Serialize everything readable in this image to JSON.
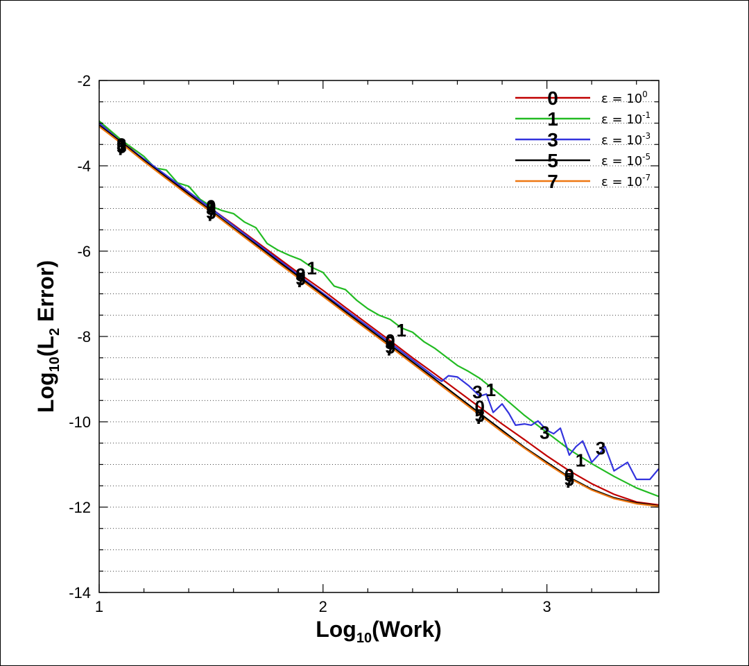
{
  "chart_data": {
    "type": "line",
    "title": "",
    "xlabel": "Log10(Work)",
    "xlabel_parts": {
      "base": "Log",
      "sub": "10",
      "rest": "(Work)"
    },
    "ylabel": "Log10(L2 Error)",
    "ylabel_parts": {
      "base": "Log",
      "sub": "10",
      "mid": "(L",
      "sub2": "2",
      "rest": " Error)"
    },
    "xlim": [
      1,
      3.5
    ],
    "ylim": [
      -14,
      -2
    ],
    "x_ticks": [
      1,
      2,
      3
    ],
    "x_tick_labels": [
      "1",
      "2",
      "3"
    ],
    "y_ticks": [
      -14,
      -12,
      -10,
      -8,
      -6,
      -4,
      -2
    ],
    "y_tick_labels": [
      "-14",
      "-12",
      "-10",
      "-8",
      "-6",
      "-4",
      "-2"
    ],
    "grid": "horizontal dotted",
    "legend_position": "top-right",
    "series": [
      {
        "symbol": "0",
        "legend_label": "ε = 10",
        "legend_exp": "0",
        "color": "#c00000",
        "x": [
          1.0,
          1.1,
          1.2,
          1.3,
          1.4,
          1.5,
          1.6,
          1.7,
          1.8,
          1.9,
          2.0,
          2.1,
          2.2,
          2.3,
          2.4,
          2.5,
          2.6,
          2.7,
          2.8,
          2.9,
          3.0,
          3.1,
          3.2,
          3.3,
          3.4,
          3.5
        ],
        "values": [
          -3.0,
          -3.42,
          -3.85,
          -4.25,
          -4.62,
          -5.0,
          -5.38,
          -5.77,
          -6.16,
          -6.55,
          -6.92,
          -7.32,
          -7.71,
          -8.1,
          -8.5,
          -8.88,
          -9.27,
          -9.66,
          -10.05,
          -10.42,
          -10.8,
          -11.15,
          -11.45,
          -11.7,
          -11.88,
          -11.95
        ],
        "markers": [
          [
            1.1,
            -3.5
          ],
          [
            1.5,
            -4.95
          ],
          [
            1.9,
            -6.55
          ],
          [
            2.3,
            -8.1
          ],
          [
            2.7,
            -9.65
          ],
          [
            3.1,
            -11.25
          ]
        ]
      },
      {
        "symbol": "1",
        "legend_label": "ε = 10",
        "legend_exp": "-1",
        "color": "#22bb22",
        "x": [
          1.0,
          1.1,
          1.2,
          1.25,
          1.3,
          1.35,
          1.4,
          1.45,
          1.5,
          1.55,
          1.6,
          1.65,
          1.7,
          1.75,
          1.8,
          1.85,
          1.9,
          1.95,
          2.0,
          2.05,
          2.1,
          2.15,
          2.2,
          2.25,
          2.3,
          2.35,
          2.4,
          2.45,
          2.5,
          2.55,
          2.6,
          2.65,
          2.7,
          2.8,
          2.9,
          3.0,
          3.1,
          3.2,
          3.3,
          3.4,
          3.5
        ],
        "values": [
          -2.95,
          -3.4,
          -3.78,
          -4.05,
          -4.1,
          -4.4,
          -4.48,
          -4.78,
          -4.95,
          -5.05,
          -5.12,
          -5.32,
          -5.45,
          -5.82,
          -5.98,
          -6.1,
          -6.2,
          -6.38,
          -6.5,
          -6.82,
          -6.9,
          -7.15,
          -7.35,
          -7.5,
          -7.6,
          -7.8,
          -7.9,
          -8.12,
          -8.28,
          -8.48,
          -8.68,
          -8.82,
          -8.98,
          -9.4,
          -9.85,
          -10.25,
          -10.65,
          -10.98,
          -11.28,
          -11.55,
          -11.75
        ],
        "markers": [
          [
            1.1,
            -3.5
          ],
          [
            1.5,
            -4.95
          ],
          [
            1.95,
            -6.4
          ],
          [
            2.35,
            -7.85
          ],
          [
            2.75,
            -9.25
          ],
          [
            3.15,
            -10.9
          ]
        ]
      },
      {
        "symbol": "3",
        "legend_label": "ε = 10",
        "legend_exp": "-3",
        "color": "#3333dd",
        "x": [
          1.0,
          1.1,
          1.5,
          1.9,
          2.3,
          2.5,
          2.53,
          2.56,
          2.6,
          2.65,
          2.7,
          2.73,
          2.76,
          2.8,
          2.83,
          2.86,
          2.9,
          2.93,
          2.96,
          3.0,
          3.03,
          3.06,
          3.1,
          3.13,
          3.16,
          3.2,
          3.23,
          3.26,
          3.3,
          3.33,
          3.36,
          3.4,
          3.43,
          3.46,
          3.5
        ],
        "values": [
          -3.0,
          -3.45,
          -5.0,
          -6.6,
          -8.15,
          -8.95,
          -9.05,
          -8.92,
          -8.95,
          -9.15,
          -9.4,
          -9.35,
          -9.78,
          -9.58,
          -9.8,
          -10.08,
          -10.05,
          -10.08,
          -9.98,
          -10.2,
          -10.28,
          -10.15,
          -10.78,
          -10.58,
          -10.45,
          -10.95,
          -10.78,
          -10.58,
          -11.15,
          -11.05,
          -10.95,
          -11.35,
          -11.35,
          -11.35,
          -11.1
        ],
        "markers": [
          [
            1.1,
            -3.5
          ],
          [
            1.5,
            -5.0
          ],
          [
            1.9,
            -6.55
          ],
          [
            2.3,
            -8.15
          ],
          [
            2.69,
            -9.3
          ],
          [
            2.99,
            -10.25
          ],
          [
            3.24,
            -10.62
          ]
        ]
      },
      {
        "symbol": "5",
        "legend_label": "ε = 10",
        "legend_exp": "-5",
        "color": "#000000",
        "x": [
          1.0,
          1.1,
          1.2,
          1.3,
          1.4,
          1.5,
          1.6,
          1.7,
          1.8,
          1.9,
          2.0,
          2.1,
          2.2,
          2.3,
          2.4,
          2.5,
          2.6,
          2.7,
          2.8,
          2.9,
          3.0,
          3.1,
          3.2,
          3.3,
          3.4,
          3.5
        ],
        "values": [
          -3.05,
          -3.45,
          -3.87,
          -4.27,
          -4.66,
          -5.05,
          -5.45,
          -5.84,
          -6.24,
          -6.63,
          -7.02,
          -7.42,
          -7.81,
          -8.2,
          -8.6,
          -9.0,
          -9.4,
          -9.8,
          -10.2,
          -10.6,
          -10.95,
          -11.3,
          -11.58,
          -11.78,
          -11.9,
          -11.97
        ],
        "markers": [
          [
            1.1,
            -3.55
          ],
          [
            1.5,
            -5.1
          ],
          [
            1.9,
            -6.65
          ],
          [
            2.3,
            -8.25
          ],
          [
            2.7,
            -9.85
          ],
          [
            3.1,
            -11.35
          ]
        ]
      },
      {
        "symbol": "7",
        "legend_label": "ε = 10",
        "legend_exp": "-7",
        "color": "#ee7711",
        "x": [
          1.0,
          1.1,
          1.2,
          1.3,
          1.4,
          1.5,
          1.6,
          1.7,
          1.8,
          1.9,
          2.0,
          2.1,
          2.2,
          2.3,
          2.4,
          2.5,
          2.6,
          2.7,
          2.8,
          2.9,
          3.0,
          3.1,
          3.2,
          3.3,
          3.4,
          3.5
        ],
        "values": [
          -3.08,
          -3.48,
          -3.9,
          -4.3,
          -4.7,
          -5.08,
          -5.48,
          -5.88,
          -6.28,
          -6.67,
          -7.06,
          -7.46,
          -7.85,
          -8.24,
          -8.64,
          -9.04,
          -9.44,
          -9.84,
          -10.24,
          -10.62,
          -10.98,
          -11.32,
          -11.6,
          -11.8,
          -11.92,
          -11.98
        ],
        "markers": [
          [
            1.1,
            -3.6
          ],
          [
            1.5,
            -5.15
          ],
          [
            1.9,
            -6.7
          ],
          [
            2.3,
            -8.3
          ],
          [
            2.7,
            -9.9
          ],
          [
            3.1,
            -11.4
          ]
        ]
      }
    ]
  }
}
